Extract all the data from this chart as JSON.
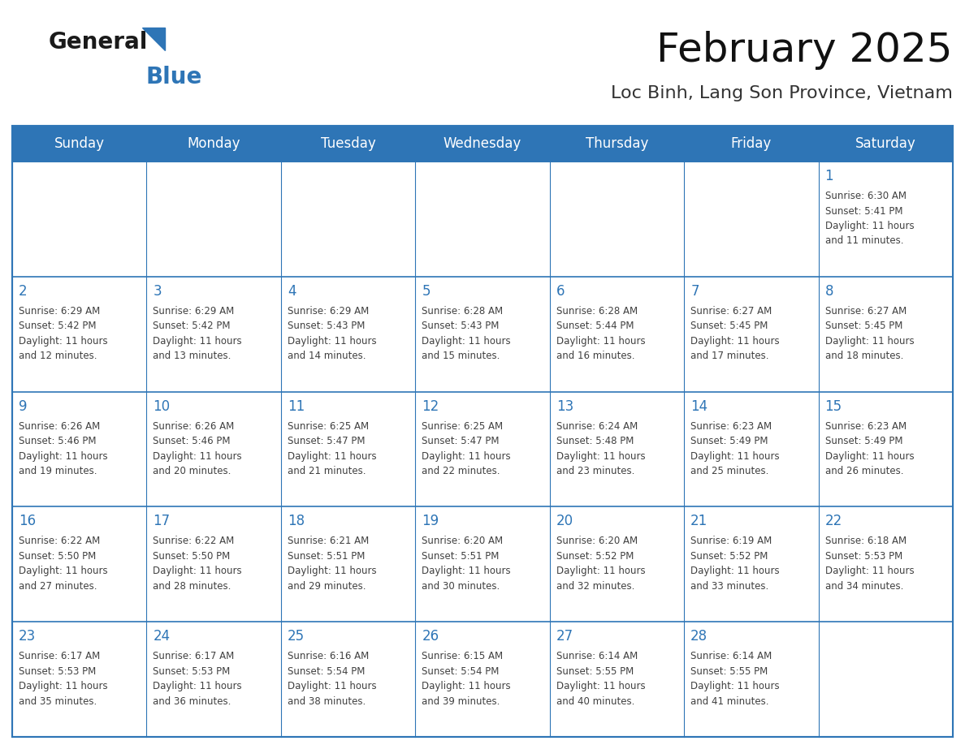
{
  "title": "February 2025",
  "subtitle": "Loc Binh, Lang Son Province, Vietnam",
  "header_color": "#2E75B6",
  "header_text_color": "#FFFFFF",
  "cell_bg_color": "#FFFFFF",
  "day_number_color": "#2E75B6",
  "info_text_color": "#404040",
  "border_color": "#2E75B6",
  "grid_color": "#2E75B6",
  "days_of_week": [
    "Sunday",
    "Monday",
    "Tuesday",
    "Wednesday",
    "Thursday",
    "Friday",
    "Saturday"
  ],
  "weeks": [
    [
      {
        "day": null,
        "info": ""
      },
      {
        "day": null,
        "info": ""
      },
      {
        "day": null,
        "info": ""
      },
      {
        "day": null,
        "info": ""
      },
      {
        "day": null,
        "info": ""
      },
      {
        "day": null,
        "info": ""
      },
      {
        "day": 1,
        "info": "Sunrise: 6:30 AM\nSunset: 5:41 PM\nDaylight: 11 hours\nand 11 minutes."
      }
    ],
    [
      {
        "day": 2,
        "info": "Sunrise: 6:29 AM\nSunset: 5:42 PM\nDaylight: 11 hours\nand 12 minutes."
      },
      {
        "day": 3,
        "info": "Sunrise: 6:29 AM\nSunset: 5:42 PM\nDaylight: 11 hours\nand 13 minutes."
      },
      {
        "day": 4,
        "info": "Sunrise: 6:29 AM\nSunset: 5:43 PM\nDaylight: 11 hours\nand 14 minutes."
      },
      {
        "day": 5,
        "info": "Sunrise: 6:28 AM\nSunset: 5:43 PM\nDaylight: 11 hours\nand 15 minutes."
      },
      {
        "day": 6,
        "info": "Sunrise: 6:28 AM\nSunset: 5:44 PM\nDaylight: 11 hours\nand 16 minutes."
      },
      {
        "day": 7,
        "info": "Sunrise: 6:27 AM\nSunset: 5:45 PM\nDaylight: 11 hours\nand 17 minutes."
      },
      {
        "day": 8,
        "info": "Sunrise: 6:27 AM\nSunset: 5:45 PM\nDaylight: 11 hours\nand 18 minutes."
      }
    ],
    [
      {
        "day": 9,
        "info": "Sunrise: 6:26 AM\nSunset: 5:46 PM\nDaylight: 11 hours\nand 19 minutes."
      },
      {
        "day": 10,
        "info": "Sunrise: 6:26 AM\nSunset: 5:46 PM\nDaylight: 11 hours\nand 20 minutes."
      },
      {
        "day": 11,
        "info": "Sunrise: 6:25 AM\nSunset: 5:47 PM\nDaylight: 11 hours\nand 21 minutes."
      },
      {
        "day": 12,
        "info": "Sunrise: 6:25 AM\nSunset: 5:47 PM\nDaylight: 11 hours\nand 22 minutes."
      },
      {
        "day": 13,
        "info": "Sunrise: 6:24 AM\nSunset: 5:48 PM\nDaylight: 11 hours\nand 23 minutes."
      },
      {
        "day": 14,
        "info": "Sunrise: 6:23 AM\nSunset: 5:49 PM\nDaylight: 11 hours\nand 25 minutes."
      },
      {
        "day": 15,
        "info": "Sunrise: 6:23 AM\nSunset: 5:49 PM\nDaylight: 11 hours\nand 26 minutes."
      }
    ],
    [
      {
        "day": 16,
        "info": "Sunrise: 6:22 AM\nSunset: 5:50 PM\nDaylight: 11 hours\nand 27 minutes."
      },
      {
        "day": 17,
        "info": "Sunrise: 6:22 AM\nSunset: 5:50 PM\nDaylight: 11 hours\nand 28 minutes."
      },
      {
        "day": 18,
        "info": "Sunrise: 6:21 AM\nSunset: 5:51 PM\nDaylight: 11 hours\nand 29 minutes."
      },
      {
        "day": 19,
        "info": "Sunrise: 6:20 AM\nSunset: 5:51 PM\nDaylight: 11 hours\nand 30 minutes."
      },
      {
        "day": 20,
        "info": "Sunrise: 6:20 AM\nSunset: 5:52 PM\nDaylight: 11 hours\nand 32 minutes."
      },
      {
        "day": 21,
        "info": "Sunrise: 6:19 AM\nSunset: 5:52 PM\nDaylight: 11 hours\nand 33 minutes."
      },
      {
        "day": 22,
        "info": "Sunrise: 6:18 AM\nSunset: 5:53 PM\nDaylight: 11 hours\nand 34 minutes."
      }
    ],
    [
      {
        "day": 23,
        "info": "Sunrise: 6:17 AM\nSunset: 5:53 PM\nDaylight: 11 hours\nand 35 minutes."
      },
      {
        "day": 24,
        "info": "Sunrise: 6:17 AM\nSunset: 5:53 PM\nDaylight: 11 hours\nand 36 minutes."
      },
      {
        "day": 25,
        "info": "Sunrise: 6:16 AM\nSunset: 5:54 PM\nDaylight: 11 hours\nand 38 minutes."
      },
      {
        "day": 26,
        "info": "Sunrise: 6:15 AM\nSunset: 5:54 PM\nDaylight: 11 hours\nand 39 minutes."
      },
      {
        "day": 27,
        "info": "Sunrise: 6:14 AM\nSunset: 5:55 PM\nDaylight: 11 hours\nand 40 minutes."
      },
      {
        "day": 28,
        "info": "Sunrise: 6:14 AM\nSunset: 5:55 PM\nDaylight: 11 hours\nand 41 minutes."
      },
      {
        "day": null,
        "info": ""
      }
    ]
  ],
  "logo_color_general": "#1a1a1a",
  "logo_color_blue": "#2E75B6",
  "logo_triangle_color": "#2E75B6",
  "title_fontsize": 36,
  "subtitle_fontsize": 16,
  "header_fontsize": 12,
  "day_num_fontsize": 12,
  "info_fontsize": 8.5
}
